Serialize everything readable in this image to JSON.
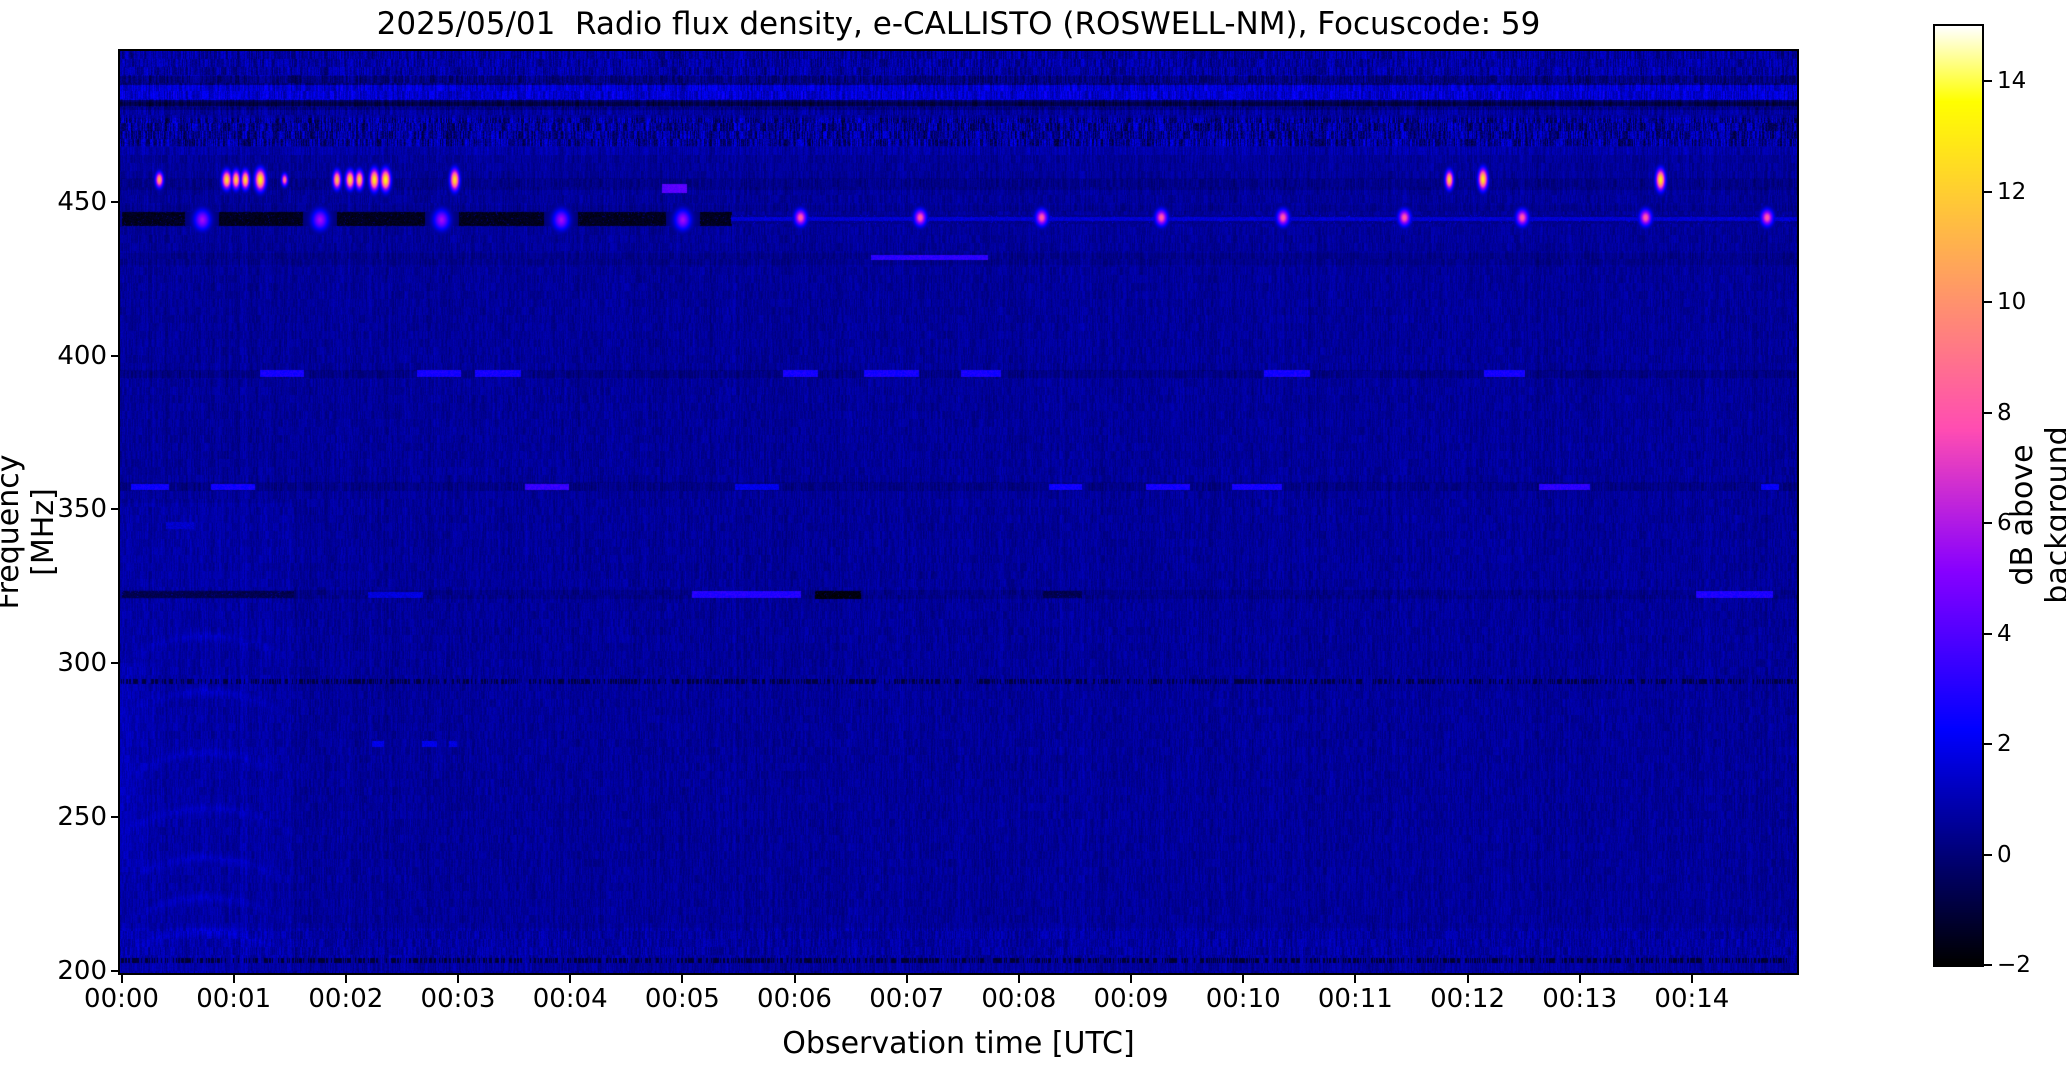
{
  "title": "2025/05/01  Radio flux density, e-CALLISTO (ROSWELL-NM), Focuscode: 59",
  "axes": {
    "xlabel": "Observation time [UTC]",
    "ylabel": "Frequency [MHz]",
    "x_ticks": [
      "00:00",
      "00:01",
      "00:02",
      "00:03",
      "00:04",
      "00:05",
      "00:06",
      "00:07",
      "00:08",
      "00:09",
      "00:10",
      "00:11",
      "00:12",
      "00:13",
      "00:14"
    ],
    "y_ticks": [
      "450",
      "400",
      "350",
      "300",
      "250",
      "200"
    ]
  },
  "colorbar": {
    "label": "dB above background",
    "ticks": [
      "14",
      "12",
      "10",
      "8",
      "6",
      "4",
      "2",
      "0",
      "−2"
    ],
    "vmin": -2,
    "vmax": 15,
    "colormap": "gnuplot2"
  },
  "chart_data": {
    "type": "heatmap",
    "title": "2025/05/01  Radio flux density, e-CALLISTO (ROSWELL-NM), Focuscode: 59",
    "xlabel": "Observation time [UTC]",
    "ylabel": "Frequency [MHz]",
    "x_range_seconds": [
      0,
      897
    ],
    "x_tick_interval_seconds": 60,
    "ylim_mhz": [
      199.3,
      499.0
    ],
    "values_unit": "dB above background",
    "value_range": [
      -2,
      15
    ],
    "background_level_db": 0.55,
    "bands_legend": "[freq_lo_MHz, freq_hi_MHz, mean_level_db, speckle_amplitude_db] horizontal noise bands",
    "bands": [
      [
        491.0,
        499.2,
        0.7,
        1.7
      ],
      [
        488.0,
        491.0,
        0.12,
        1.5
      ],
      [
        483.2,
        488.0,
        1.5,
        1.75
      ],
      [
        481.2,
        483.2,
        -0.35,
        1.0
      ],
      [
        477.3,
        481.2,
        0.6,
        1.2
      ],
      [
        468.0,
        477.3,
        0.5,
        2.8
      ],
      [
        465.5,
        468.0,
        0.8,
        1.0
      ],
      [
        204.5,
        214.0,
        0.7,
        1.15
      ],
      [
        199.0,
        204.0,
        0.62,
        0.95
      ]
    ],
    "rows_legend": "[freq_lo_MHz, freq_hi_MHz, level_delta_db] faint full-width horizontal lanes",
    "rows": [
      [
        454.3,
        457.6,
        -0.28
      ],
      [
        446.9,
        448.9,
        -0.15
      ],
      [
        429.8,
        433.2,
        -0.22
      ],
      [
        392.9,
        395.4,
        -0.35
      ],
      [
        356.4,
        358.9,
        -0.3
      ],
      [
        321.3,
        323.7,
        -0.28
      ],
      [
        480.3,
        482.3,
        -0.45
      ]
    ],
    "dotted_rows_legend": "[freq_MHz, half_height_px, dot_probability, level_db] dark dotted interference lines",
    "dotted_rows": [
      [
        294.3,
        2,
        0.5,
        -0.9
      ],
      [
        203.5,
        2,
        0.48,
        -1.1
      ]
    ],
    "segments_legend": "[mode b=bright|d=dark, freq_lo_MHz, freq_hi_MHz, t_start_s, t_end_s, level_db]",
    "segments": [
      [
        "d",
        442.3,
        446.8,
        0,
        326,
        -1.5
      ],
      [
        "d",
        443.2,
        445.8,
        326,
        897,
        0.35
      ],
      [
        "b",
        444.1,
        445.2,
        326,
        897,
        1.5
      ],
      [
        "b",
        453.2,
        455.8,
        289,
        302,
        4.2
      ],
      [
        "b",
        431.3,
        432.8,
        401,
        463,
        3.2
      ],
      [
        "b",
        393.2,
        395.2,
        74,
        97,
        2.7
      ],
      [
        "b",
        393.2,
        395.2,
        158,
        181,
        2.7
      ],
      [
        "b",
        393.2,
        395.2,
        189,
        213,
        2.7
      ],
      [
        "b",
        393.2,
        395.2,
        354,
        372,
        2.7
      ],
      [
        "b",
        393.2,
        395.2,
        397,
        426,
        2.7
      ],
      [
        "b",
        393.2,
        395.2,
        449,
        470,
        2.7
      ],
      [
        "b",
        393.2,
        395.2,
        611,
        635,
        2.7
      ],
      [
        "b",
        393.2,
        395.2,
        729,
        750,
        2.7
      ],
      [
        "b",
        356.5,
        358.3,
        5,
        25,
        2.5
      ],
      [
        "b",
        356.5,
        358.3,
        48,
        71,
        2.6
      ],
      [
        "b",
        356.5,
        358.3,
        216,
        239,
        3.4
      ],
      [
        "b",
        356.5,
        358.3,
        328,
        351,
        1.9
      ],
      [
        "b",
        356.5,
        358.3,
        496,
        513,
        2.6
      ],
      [
        "b",
        356.5,
        358.3,
        548,
        571,
        2.7
      ],
      [
        "b",
        356.5,
        358.3,
        594,
        620,
        2.7
      ],
      [
        "b",
        356.5,
        358.3,
        758,
        785,
        3.2
      ],
      [
        "b",
        356.5,
        358.3,
        877,
        886,
        2.3
      ],
      [
        "d",
        321.4,
        323.4,
        0,
        92,
        -0.7
      ],
      [
        "b",
        321.6,
        323.2,
        132,
        161,
        1.7
      ],
      [
        "b",
        321.4,
        323.4,
        305,
        363,
        3.0
      ],
      [
        "d",
        321.2,
        323.6,
        371,
        395,
        -1.8
      ],
      [
        "d",
        321.4,
        323.4,
        493,
        513,
        -0.7
      ],
      [
        "b",
        321.4,
        323.4,
        842,
        883,
        2.9
      ],
      [
        "b",
        273.0,
        274.6,
        134,
        140,
        1.9
      ],
      [
        "b",
        273.0,
        274.6,
        161,
        168,
        1.9
      ],
      [
        "b",
        273.0,
        274.6,
        175,
        179,
        1.7
      ],
      [
        "b",
        344.0,
        346.0,
        24,
        38,
        1.4
      ]
    ],
    "dots_legend": "[t_s, freq_MHz, peak_db, radius_t_px, radius_f_px] point-like bursts",
    "orange_dots": [
      [
        20,
        457.3,
        11.0,
        2.5,
        5
      ],
      [
        56,
        457.3,
        12.5,
        3.0,
        6
      ],
      [
        61,
        457.3,
        12.0,
        2.6,
        6
      ],
      [
        66,
        457.3,
        12.5,
        2.6,
        6
      ],
      [
        74,
        457.3,
        13.2,
        3.4,
        7
      ],
      [
        87,
        457.3,
        9.5,
        2.0,
        4
      ],
      [
        115,
        457.3,
        11.5,
        2.6,
        6
      ],
      [
        122,
        457.3,
        12.5,
        2.8,
        6
      ],
      [
        127,
        457.3,
        12.0,
        2.6,
        6
      ],
      [
        135,
        457.3,
        13.0,
        3.0,
        7
      ],
      [
        141,
        457.3,
        13.4,
        3.2,
        7
      ],
      [
        178,
        457.3,
        12.6,
        3.0,
        7
      ],
      [
        710,
        457.3,
        12.0,
        2.6,
        6
      ],
      [
        728,
        457.5,
        13.0,
        3.0,
        7
      ],
      [
        823,
        457.3,
        13.0,
        3.0,
        7
      ]
    ],
    "purple_blobs": [
      [
        43,
        444.3,
        5.6,
        5.5,
        7
      ],
      [
        106,
        444.3,
        5.6,
        5.5,
        7
      ],
      [
        171,
        444.3,
        5.6,
        5.5,
        7
      ],
      [
        235,
        444.3,
        5.6,
        5.5,
        7
      ],
      [
        300,
        444.3,
        5.6,
        5.5,
        7
      ]
    ],
    "pink_dots": [
      [
        363,
        445.0,
        8.2,
        4,
        5.5
      ],
      [
        427,
        445.0,
        8.2,
        4,
        5.5
      ],
      [
        492,
        445.0,
        8.2,
        4,
        5.5
      ],
      [
        556,
        445.0,
        8.2,
        4,
        5.5
      ],
      [
        621,
        445.0,
        8.2,
        4,
        5.5
      ],
      [
        686,
        445.0,
        8.2,
        4,
        5.5
      ],
      [
        749,
        445.0,
        8.2,
        4,
        5.5
      ],
      [
        815,
        445.0,
        8.2,
        4,
        5.5
      ],
      [
        880,
        445.0,
        8.2,
        4,
        5.5
      ]
    ],
    "left_block": {
      "t_range_s": [
        0,
        92
      ],
      "f_max_mhz": 352,
      "boost_db": 0.18
    },
    "arcs": {
      "t_range_s": [
        0,
        92
      ],
      "ring_freqs_mhz": [
        309,
        291,
        271,
        253,
        237,
        224,
        213
      ],
      "amp_db": 0.5
    }
  }
}
